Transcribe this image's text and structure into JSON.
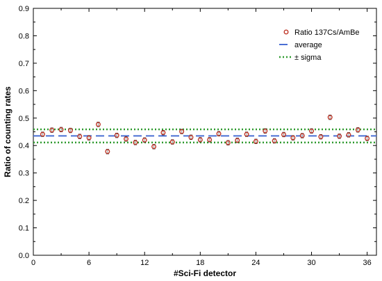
{
  "chart_data": {
    "type": "scatter",
    "title": "",
    "xlabel": "#Sci-Fi detector",
    "ylabel": "Ratio of counting rates",
    "xlim": [
      0,
      37
    ],
    "ylim": [
      0,
      0.9
    ],
    "xticks": [
      0,
      6,
      12,
      18,
      24,
      30,
      36
    ],
    "xtick_labels": [
      "0",
      "6",
      "12",
      "18",
      "24",
      "30",
      "36"
    ],
    "yticks": [
      0,
      0.1,
      0.2,
      0.3,
      0.4,
      0.5,
      0.6,
      0.7,
      0.8,
      0.9
    ],
    "ytick_labels": [
      "0.0",
      "0.1",
      "0.2",
      "0.3",
      "0.4",
      "0.5",
      "0.6",
      "0.7",
      "0.8",
      "0.9"
    ],
    "grid": false,
    "legend_position": "top-right",
    "series": [
      {
        "name": "Ratio 137Cs/AmBe",
        "marker": "circle",
        "color": "#c0392b",
        "x": [
          1,
          2,
          3,
          4,
          5,
          6,
          7,
          8,
          9,
          10,
          11,
          12,
          13,
          14,
          15,
          16,
          17,
          18,
          19,
          20,
          21,
          22,
          23,
          24,
          25,
          26,
          27,
          28,
          29,
          30,
          31,
          32,
          33,
          34,
          35,
          36
        ],
        "y": [
          0.441,
          0.456,
          0.458,
          0.455,
          0.433,
          0.428,
          0.477,
          0.378,
          0.437,
          0.424,
          0.411,
          0.42,
          0.396,
          0.447,
          0.413,
          0.451,
          0.43,
          0.421,
          0.421,
          0.443,
          0.41,
          0.419,
          0.441,
          0.415,
          0.453,
          0.417,
          0.44,
          0.428,
          0.436,
          0.453,
          0.432,
          0.503,
          0.434,
          0.439,
          0.457,
          0.426
        ],
        "error": 0.008
      },
      {
        "name": "average",
        "style": "dashed",
        "color": "#4a6fd4",
        "y": 0.435
      },
      {
        "name": "± sigma",
        "style": "dotted",
        "color": "#2e9a2e",
        "y": [
          0.411,
          0.459
        ]
      }
    ]
  }
}
